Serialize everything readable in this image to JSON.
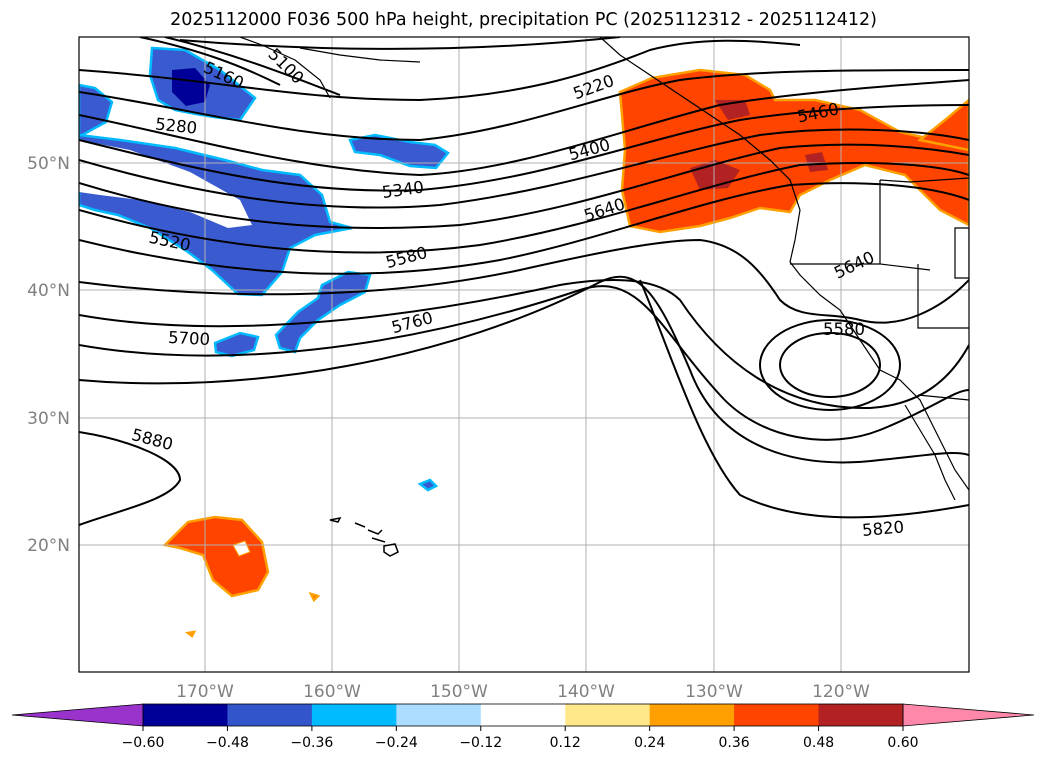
{
  "title": "2025112000 F036 500 hPa height, precipitation PC (2025112312 - 2025112412)",
  "lat_labels": [
    "50°N",
    "40°N",
    "30°N",
    "20°N"
  ],
  "lon_labels": [
    "170°W",
    "160°W",
    "150°W",
    "140°W",
    "130°W",
    "120°W"
  ],
  "colorbar": {
    "colors": [
      "#9933cc",
      "#000099",
      "#3355cc",
      "#00bbff",
      "#aaddff",
      "#ffffff",
      "#ffe88a",
      "#ffa000",
      "#ff4400",
      "#b22222",
      "#ff88aa"
    ],
    "ticks": [
      "−0.60",
      "−0.48",
      "−0.36",
      "−0.24",
      "−0.12",
      "0.12",
      "0.24",
      "0.36",
      "0.48",
      "0.60"
    ]
  },
  "contour_labels": [
    "5100",
    "5160",
    "5220",
    "5280",
    "5340",
    "5400",
    "5460",
    "5520",
    "5580",
    "5640",
    "5700",
    "5760",
    "5880",
    "5640",
    "5580",
    "5820"
  ],
  "colors": {
    "negative": "#3a5bd0",
    "negative_edge": "#00bbff",
    "negative_core": "#000099",
    "positive": "#ff4400",
    "positive_edge": "#ffa000",
    "positive_core": "#b22222"
  }
}
